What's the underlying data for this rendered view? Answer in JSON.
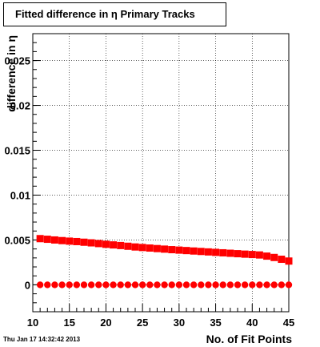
{
  "chart_data": {
    "type": "scatter",
    "title": "Fitted difference in  η Primary Tracks",
    "xlabel": "No. of Fit Points",
    "ylabel": "difference in η",
    "xlim": [
      10,
      45
    ],
    "ylim": [
      -0.003,
      0.028
    ],
    "x_ticks": [
      "10",
      "15",
      "20",
      "25",
      "30",
      "35",
      "40",
      "45"
    ],
    "y_ticks": [
      "0",
      "0.005",
      "0.01",
      "0.015",
      "0.02",
      "0.025"
    ],
    "grid": true,
    "series": [
      {
        "color": "#ff0000",
        "x": [
          11,
          12,
          13,
          14,
          15,
          16,
          17,
          18,
          19,
          20,
          21,
          22,
          23,
          24,
          25,
          26,
          27,
          28,
          29,
          30,
          31,
          32,
          33,
          34,
          35,
          36,
          37,
          38,
          39,
          40,
          41,
          42,
          43,
          44,
          45
        ],
        "y": [
          0.00515,
          0.00508,
          0.005,
          0.00493,
          0.00487,
          0.00482,
          0.00475,
          0.00468,
          0.0046,
          0.00452,
          0.00445,
          0.00438,
          0.0043,
          0.00422,
          0.00416,
          0.0041,
          0.00404,
          0.00398,
          0.00392,
          0.00387,
          0.00382,
          0.00377,
          0.00372,
          0.00367,
          0.00362,
          0.00357,
          0.00352,
          0.00347,
          0.00342,
          0.00338,
          0.00333,
          0.0032,
          0.00305,
          0.00285,
          0.00265
        ]
      },
      {
        "color": "#ff0000",
        "x": [
          11,
          12,
          13,
          14,
          15,
          16,
          17,
          18,
          19,
          20,
          21,
          22,
          23,
          24,
          25,
          26,
          27,
          28,
          29,
          30,
          31,
          32,
          33,
          34,
          35,
          36,
          37,
          38,
          39,
          40,
          41,
          42,
          43,
          44,
          45
        ],
        "y": [
          0,
          0,
          0,
          0,
          0,
          0,
          0,
          0,
          0,
          0,
          0,
          0,
          0,
          0,
          0,
          0,
          0,
          0,
          0,
          0,
          0,
          0,
          0,
          0,
          0,
          0,
          0,
          0,
          0,
          0,
          0,
          0,
          0,
          0,
          0
        ]
      }
    ]
  },
  "footer": {
    "timestamp": "Thu Jan 17 14:32:42 2013"
  }
}
